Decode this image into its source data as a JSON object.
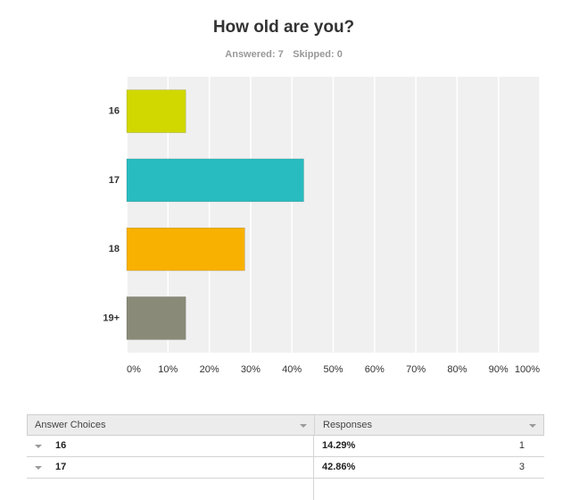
{
  "chart_data": {
    "type": "hbar",
    "title": "How old are you?",
    "answered": "Answered: 7",
    "skipped": "Skipped: 0",
    "categories": [
      "16",
      "17",
      "18",
      "19+"
    ],
    "values": [
      14.29,
      42.86,
      28.57,
      14.29
    ],
    "colors": [
      "#d0d800",
      "#28bcc0",
      "#f8b100",
      "#8a8a78"
    ],
    "xlim": [
      0,
      100
    ],
    "xticks": [
      {
        "value": 0,
        "label": "0%"
      },
      {
        "value": 10,
        "label": "10%"
      },
      {
        "value": 20,
        "label": "20%"
      },
      {
        "value": 30,
        "label": "30%"
      },
      {
        "value": 40,
        "label": "40%"
      },
      {
        "value": 50,
        "label": "50%"
      },
      {
        "value": 60,
        "label": "60%"
      },
      {
        "value": 70,
        "label": "70%"
      },
      {
        "value": 80,
        "label": "80%"
      },
      {
        "value": 90,
        "label": "90%"
      },
      {
        "value": 100,
        "label": "100%"
      }
    ],
    "grid": true
  },
  "table": {
    "headers": [
      "Answer Choices",
      "Responses"
    ],
    "rows": [
      [
        "16",
        "14.29%",
        1
      ],
      [
        "17",
        "42.86%",
        3
      ]
    ]
  }
}
